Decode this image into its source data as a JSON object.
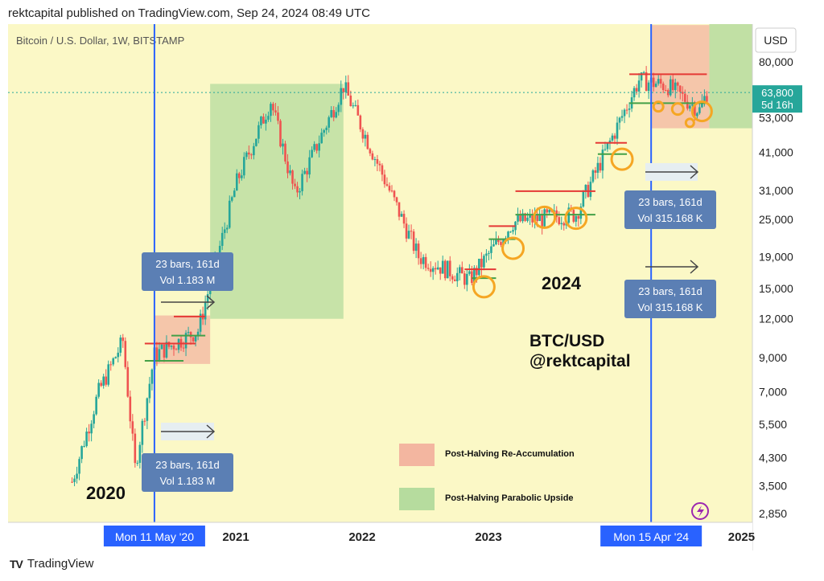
{
  "header": {
    "published": "rektcapital published on TradingView.com, Sep 24, 2024 08:49 UTC"
  },
  "footer": {
    "brand": "TradingView"
  },
  "chart_data": {
    "type": "candlestick",
    "title": "Bitcoin / U.S. Dollar, 1W, BITSTAMP",
    "currency": "USD",
    "y_scale": "log",
    "ylim": [
      2500,
      110000
    ],
    "y_ticks": [
      "80,000",
      "53,000",
      "41,000",
      "31,000",
      "25,000",
      "19,000",
      "15,000",
      "12,000",
      "9,000",
      "7,000",
      "5,500",
      "4,300",
      "3,500",
      "2,850"
    ],
    "x_ticks": [
      "2021",
      "2022",
      "2023",
      "2025"
    ],
    "current_price": {
      "value": "63,800",
      "countdown": "5d 16h"
    },
    "halvings": [
      {
        "date": "2020-05-11",
        "label": "Mon 11 May '20"
      },
      {
        "date": "2024-04-15",
        "label": "Mon 15 Apr '24"
      }
    ],
    "year_labels": [
      "2020",
      "2024"
    ],
    "watermark": [
      "BTC/USD",
      "@rektcapital"
    ],
    "measure_boxes": [
      {
        "line1": "23 bars, 161d",
        "line2": "Vol 1.183 M"
      },
      {
        "line1": "23 bars, 161d",
        "line2": "Vol 1.183 M"
      },
      {
        "line1": "23 bars, 161d",
        "line2": "Vol 315.168 K"
      },
      {
        "line1": "23 bars, 161d",
        "line2": "Vol 315.168 K"
      }
    ],
    "legend": [
      {
        "label": "Post-Halving Re-Accumulation",
        "color": "#f3b6a0"
      },
      {
        "label": "Post-Halving Parabolic Upside",
        "color": "#b6dc9e"
      }
    ],
    "colors": {
      "up": "#26a69a",
      "down": "#ef5350",
      "background": "#fbf8c6",
      "halving_line": "#2962ff",
      "price_tag": "#26a69a",
      "circle": "#f5a623"
    },
    "path_points": [
      [
        "2019-09-16",
        3600
      ],
      [
        "2019-12-02",
        7000
      ],
      [
        "2020-02-10",
        10200
      ],
      [
        "2020-03-16",
        4000
      ],
      [
        "2020-05-11",
        9200
      ],
      [
        "2020-09-14",
        11000
      ],
      [
        "2021-01-04",
        33000
      ],
      [
        "2021-04-12",
        60000
      ],
      [
        "2021-06-21",
        30000
      ],
      [
        "2021-11-08",
        67000
      ],
      [
        "2022-06-13",
        19000
      ],
      [
        "2022-11-07",
        16000
      ],
      [
        "2023-03-13",
        24500
      ],
      [
        "2023-09-11",
        26000
      ],
      [
        "2023-12-04",
        41000
      ],
      [
        "2024-03-11",
        70000
      ],
      [
        "2024-06-03",
        67000
      ],
      [
        "2024-09-02",
        56000
      ],
      [
        "2024-09-23",
        63800
      ]
    ]
  }
}
